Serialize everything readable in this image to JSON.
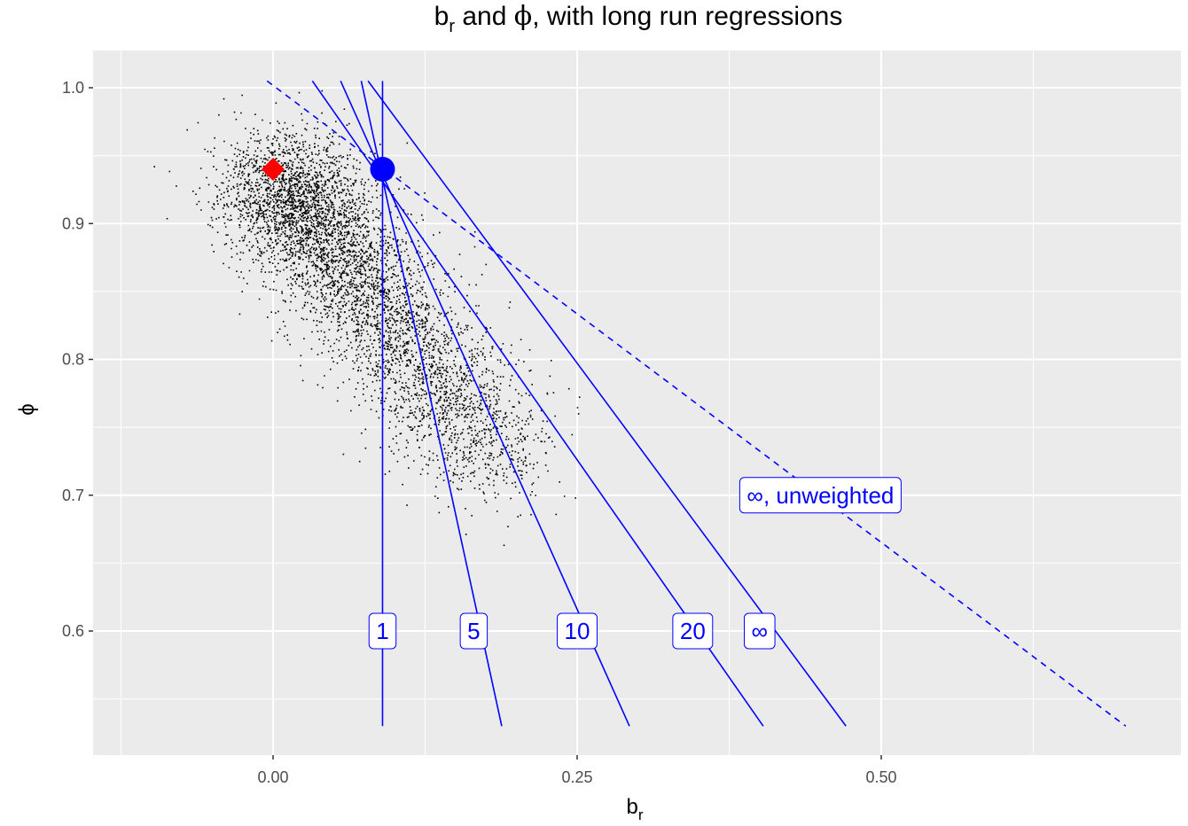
{
  "chart_data": {
    "type": "scatter",
    "title": {
      "main": "b",
      "sub": "r",
      "rest1": " and ",
      "phi": "ϕ",
      "rest2": ", with long run regressions"
    },
    "xlabel": {
      "main": "b",
      "sub": "r"
    },
    "ylabel": "ϕ",
    "xlim": [
      -0.145,
      0.74
    ],
    "ylim": [
      0.51,
      1.025
    ],
    "x_ticks": [
      0.0,
      0.25,
      0.5
    ],
    "x_tick_labels": [
      "0.00",
      "0.25",
      "0.50"
    ],
    "y_ticks": [
      0.6,
      0.7,
      0.8,
      0.9,
      1.0
    ],
    "y_tick_labels": [
      "0.6",
      "0.7",
      "0.8",
      "0.9",
      "1.0"
    ],
    "grid": true,
    "panel_background": "#ebebeb",
    "scatter": {
      "n_points": 5000,
      "color": "#000000",
      "description_center": [
        0.0,
        0.94
      ]
    },
    "marker_red": {
      "x": 0.0,
      "y": 0.94,
      "color": "#ff0000",
      "shape": "diamond"
    },
    "marker_blue": {
      "x": 0.09,
      "y": 0.94,
      "color": "#0000ff",
      "shape": "circle"
    },
    "lines": [
      {
        "name": "1",
        "x0": 0.09,
        "y0": 1.005,
        "x1": 0.09,
        "y1": 0.53,
        "style": "solid",
        "label": "1",
        "label_x": 0.09,
        "label_y": 0.6
      },
      {
        "name": "5",
        "x0": 0.0725,
        "y0": 1.005,
        "x1": 0.188,
        "y1": 0.53,
        "style": "solid",
        "label": "5",
        "label_x": 0.165,
        "label_y": 0.6
      },
      {
        "name": "10",
        "x0": 0.0555,
        "y0": 1.005,
        "x1": 0.293,
        "y1": 0.53,
        "style": "solid",
        "label": "10",
        "label_x": 0.25,
        "label_y": 0.6
      },
      {
        "name": "20",
        "x0": 0.0323,
        "y0": 1.005,
        "x1": 0.403,
        "y1": 0.53,
        "style": "solid",
        "label": "20",
        "label_x": 0.345,
        "label_y": 0.6
      },
      {
        "name": "inf",
        "x0": 0.0781,
        "y0": 1.005,
        "x1": 0.471,
        "y1": 0.53,
        "style": "solid",
        "label": "∞",
        "label_x": 0.4,
        "label_y": 0.6
      },
      {
        "name": "inf-unweighted",
        "x0": -0.0049,
        "y0": 1.005,
        "x1": 0.701,
        "y1": 0.53,
        "style": "dashed",
        "label": "∞, unweighted",
        "label_x": 0.45,
        "label_y": 0.7
      }
    ],
    "line_color": "#0000ff"
  }
}
